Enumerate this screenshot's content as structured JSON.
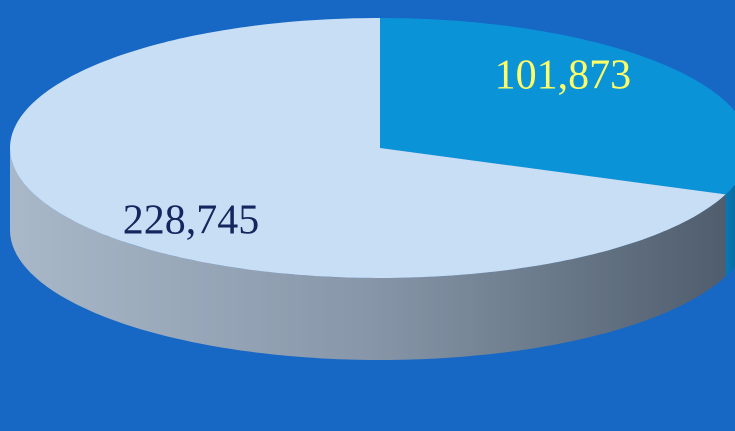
{
  "chart_data": {
    "type": "pie",
    "values": [
      101873,
      228745
    ],
    "value_labels": [
      "101,873",
      "228,745"
    ],
    "colors": [
      "#0b93d8",
      "#c8def5"
    ],
    "label_colors": [
      "#ffff66",
      "#14265e"
    ],
    "background": "#1767c4"
  }
}
